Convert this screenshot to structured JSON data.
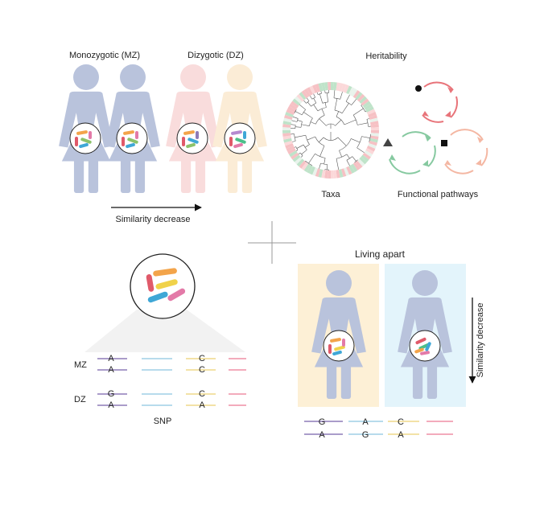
{
  "top_left": {
    "mz_label": "Monozygotic (MZ)",
    "dz_label": "Dizygotic (DZ)",
    "arrow_label": "Similarity decrease"
  },
  "top_right": {
    "title": "Heritability",
    "taxa_label": "Taxa",
    "pathways_label": "Functional pathways"
  },
  "bottom_left": {
    "mz_row_label": "MZ",
    "dz_row_label": "DZ",
    "snp_label": "SNP",
    "mz_snp": {
      "top": [
        "A",
        "C"
      ],
      "bottom": [
        "A",
        "C"
      ]
    },
    "dz_snp": {
      "top": [
        "G",
        "C"
      ],
      "bottom": [
        "A",
        "A"
      ]
    }
  },
  "bottom_right": {
    "title": "Living apart",
    "arrow_label": "Similarity decrease",
    "snp_top": [
      "G",
      "A",
      "C"
    ],
    "snp_bottom": [
      "A",
      "G",
      "A"
    ]
  },
  "colors": {
    "mz_figure": "#b9c3dc",
    "dz_figure_1": "#f9dcdc",
    "dz_figure_2": "#fbecd6",
    "living_apart_bg_1": "#fdf0d6",
    "living_apart_bg_2": "#e3f4fb",
    "pathway_red": "#e8747a",
    "pathway_green": "#86c9a0",
    "pathway_peach": "#f4b7a3",
    "snp_purple": "#8e7bb8",
    "snp_blue": "#9fcfe6",
    "snp_yellow": "#efd98a",
    "snp_pink": "#ef8fa6"
  }
}
